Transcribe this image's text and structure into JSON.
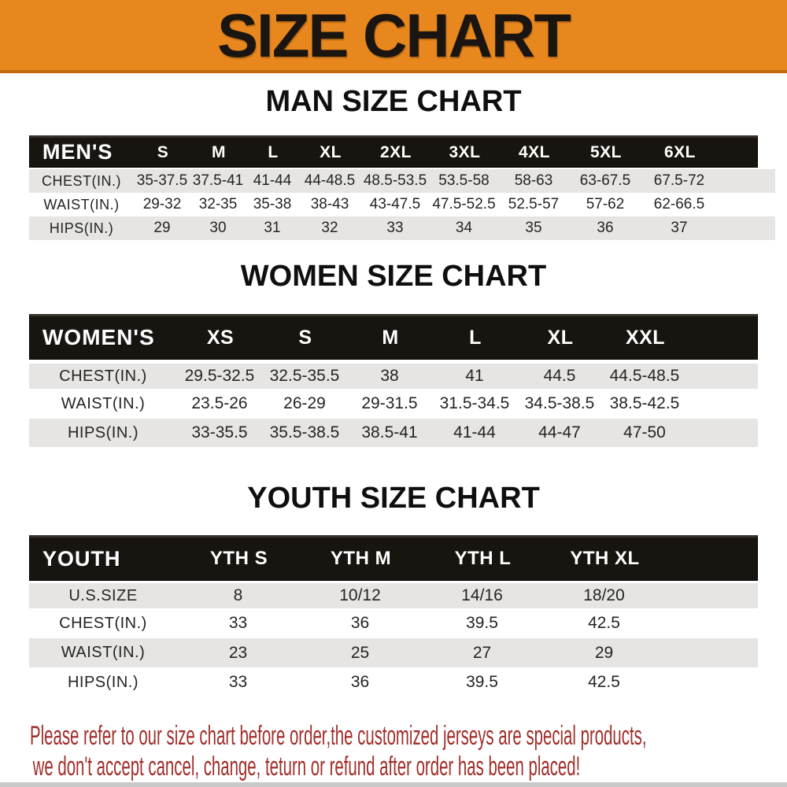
{
  "banner": {
    "title": "SIZE CHART"
  },
  "chart_data": [
    {
      "type": "table",
      "title": "MAN SIZE CHART",
      "corner_label": "MEN'S",
      "columns": [
        "S",
        "M",
        "L",
        "XL",
        "2XL",
        "3XL",
        "4XL",
        "5XL",
        "6XL"
      ],
      "rows": [
        {
          "label": "CHEST(IN.)",
          "values": [
            "35-37.5",
            "37.5-41",
            "41-44",
            "44-48.5",
            "48.5-53.5",
            "53.5-58",
            "58-63",
            "63-67.5",
            "67.5-72"
          ]
        },
        {
          "label": "WAIST(IN.)",
          "values": [
            "29-32",
            "32-35",
            "35-38",
            "38-43",
            "43-47.5",
            "47.5-52.5",
            "52.5-57",
            "57-62",
            "62-66.5"
          ]
        },
        {
          "label": "HIPS(IN.)",
          "values": [
            "29",
            "30",
            "31",
            "32",
            "33",
            "34",
            "35",
            "36",
            "37"
          ]
        }
      ]
    },
    {
      "type": "table",
      "title": "WOMEN SIZE CHART",
      "corner_label": "WOMEN'S",
      "columns": [
        "XS",
        "S",
        "M",
        "L",
        "XL",
        "XXL"
      ],
      "rows": [
        {
          "label": "CHEST(IN.)",
          "values": [
            "29.5-32.5",
            "32.5-35.5",
            "38",
            "41",
            "44.5",
            "44.5-48.5"
          ]
        },
        {
          "label": "WAIST(IN.)",
          "values": [
            "23.5-26",
            "26-29",
            "29-31.5",
            "31.5-34.5",
            "34.5-38.5",
            "38.5-42.5"
          ]
        },
        {
          "label": "HIPS(IN.)",
          "values": [
            "33-35.5",
            "35.5-38.5",
            "38.5-41",
            "41-44",
            "44-47",
            "47-50"
          ]
        }
      ]
    },
    {
      "type": "table",
      "title": "YOUTH SIZE CHART",
      "corner_label": "YOUTH",
      "columns": [
        "YTH S",
        "YTH M",
        "YTH L",
        "YTH XL"
      ],
      "rows": [
        {
          "label": "U.S.SIZE",
          "values": [
            "8",
            "10/12",
            "14/16",
            "18/20"
          ]
        },
        {
          "label": "CHEST(IN.)",
          "values": [
            "33",
            "36",
            "39.5",
            "42.5"
          ]
        },
        {
          "label": "WAIST(IN.)",
          "values": [
            "23",
            "25",
            "27",
            "29"
          ]
        },
        {
          "label": "HIPS(IN.)",
          "values": [
            "33",
            "36",
            "39.5",
            "42.5"
          ]
        }
      ]
    }
  ],
  "footer": {
    "line1": "Please refer to our size chart before order,the customized jerseys are special products,",
    "line2": "we don't accept cancel, change, teturn or refund after order has been placed!"
  },
  "colors": {
    "banner_orange": "#E8871E",
    "banner_border": "#C06A10",
    "header_black": "#18140F",
    "row_gray": "#E6E5E3",
    "text_dark": "#242424",
    "footer_red": "#A02E2A",
    "bottom_strip": "#C8C8C8"
  }
}
